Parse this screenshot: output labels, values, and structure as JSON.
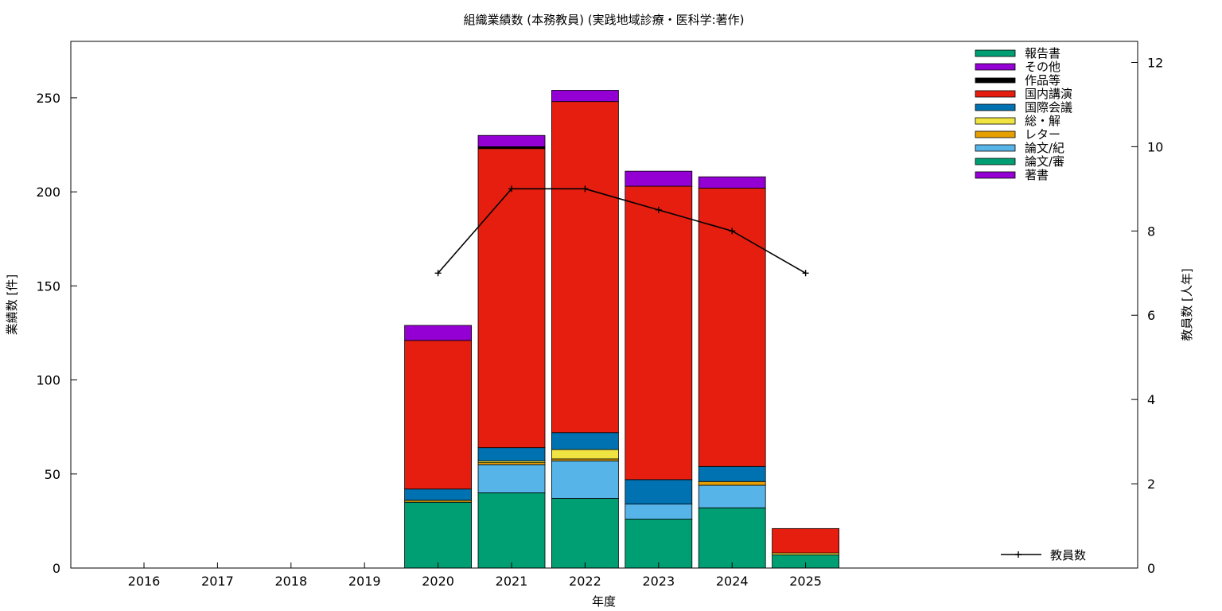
{
  "chart_data": {
    "type": "bar",
    "stacked": true,
    "title": "組織業績数 (本務教員) (実践地域診療・医科学:著作)",
    "xlabel": "年度",
    "ylabel": "業績数 [件]",
    "y2label": "教員数 [人年]",
    "categories": [
      "2016",
      "2017",
      "2018",
      "2019",
      "2020",
      "2021",
      "2022",
      "2023",
      "2024",
      "2025"
    ],
    "ylim": [
      0,
      280
    ],
    "yticks": [
      0,
      50,
      100,
      150,
      200,
      250
    ],
    "y2lim": [
      0,
      12.5
    ],
    "y2ticks": [
      0,
      2,
      4,
      6,
      8,
      10,
      12
    ],
    "grid": false,
    "legend_position": "top-right",
    "series": [
      {
        "name": "論文/審",
        "color": "#009e73",
        "values": [
          0,
          0,
          0,
          0,
          35,
          40,
          37,
          26,
          32,
          7
        ]
      },
      {
        "name": "論文/紀",
        "color": "#56b4e9",
        "values": [
          0,
          0,
          0,
          0,
          0,
          15,
          20,
          8,
          12,
          0
        ]
      },
      {
        "name": "レター",
        "color": "#e69f00",
        "values": [
          0,
          0,
          0,
          0,
          1,
          1,
          1,
          0,
          2,
          0
        ]
      },
      {
        "name": "総・解",
        "color": "#f0e442",
        "values": [
          0,
          0,
          0,
          0,
          0,
          1,
          5,
          0,
          0,
          1
        ]
      },
      {
        "name": "国際会議",
        "color": "#0072b2",
        "values": [
          0,
          0,
          0,
          0,
          6,
          7,
          9,
          13,
          8,
          0
        ]
      },
      {
        "name": "国内講演",
        "color": "#e51e10",
        "values": [
          0,
          0,
          0,
          0,
          79,
          159,
          176,
          156,
          148,
          13
        ]
      },
      {
        "name": "作品等",
        "color": "#000000",
        "values": [
          0,
          0,
          0,
          0,
          0,
          1,
          0,
          0,
          0,
          0
        ]
      },
      {
        "name": "その他",
        "color": "#9400d3",
        "values": [
          0,
          0,
          0,
          0,
          0,
          0,
          0,
          0,
          0,
          0
        ]
      },
      {
        "name": "報告書",
        "color": "#009e73",
        "values": [
          0,
          0,
          0,
          0,
          0,
          0,
          0,
          0,
          0,
          0
        ]
      },
      {
        "name": "著書",
        "color": "#9400d3",
        "values": [
          0,
          0,
          0,
          0,
          8,
          6,
          6,
          8,
          6,
          0
        ]
      }
    ],
    "legend_order": [
      "報告書",
      "その他",
      "作品等",
      "国内講演",
      "国際会議",
      "総・解",
      "レター",
      "論文/紀",
      "論文/審",
      "著書"
    ],
    "line_series": {
      "name": "教員数",
      "axis": "y2",
      "color": "#000000",
      "x": [
        "2020",
        "2021",
        "2022",
        "2023",
        "2024",
        "2025"
      ],
      "values": [
        7,
        9,
        9,
        8.5,
        8,
        7
      ]
    }
  }
}
